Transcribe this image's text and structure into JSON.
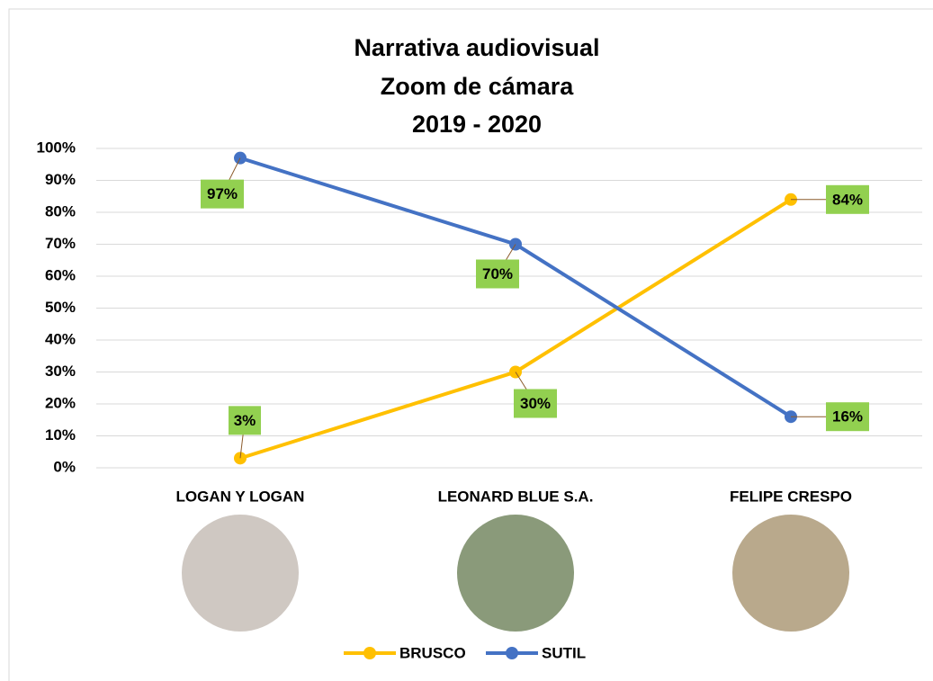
{
  "chart_data": {
    "type": "line",
    "title": [
      "Narrativa audiovisual",
      "Zoom de cámara",
      "2019 - 2020"
    ],
    "categories": [
      "LOGAN Y LOGAN",
      "LEONARD BLUE S.A.",
      "FELIPE CRESPO"
    ],
    "series": [
      {
        "name": "BRUSCO",
        "color": "#ffc000",
        "values": [
          3,
          30,
          84
        ],
        "value_labels": [
          "3%",
          "30%",
          "84%"
        ]
      },
      {
        "name": "SUTIL",
        "color": "#4472c4",
        "values": [
          97,
          70,
          16
        ],
        "value_labels": [
          "97%",
          "70%",
          "16%"
        ]
      }
    ],
    "ylim": [
      0,
      100
    ],
    "yticks": [
      {
        "value": 0,
        "label": "0%"
      },
      {
        "value": 10,
        "label": "10%"
      },
      {
        "value": 20,
        "label": "20%"
      },
      {
        "value": 30,
        "label": "30%"
      },
      {
        "value": 40,
        "label": "40%"
      },
      {
        "value": 50,
        "label": "50%"
      },
      {
        "value": 60,
        "label": "60%"
      },
      {
        "value": 70,
        "label": "70%"
      },
      {
        "value": 80,
        "label": "80%"
      },
      {
        "value": 90,
        "label": "90%"
      },
      {
        "value": 100,
        "label": "100%"
      }
    ],
    "grid": true,
    "label_color": "#92d050"
  }
}
